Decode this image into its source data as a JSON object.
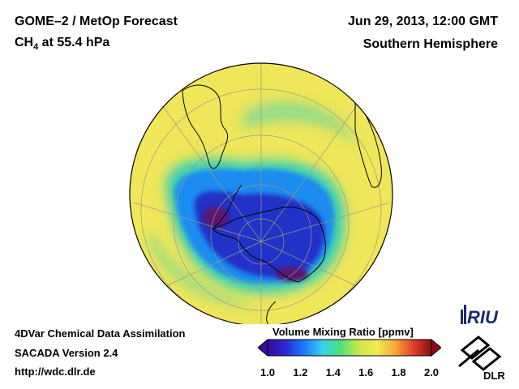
{
  "header": {
    "title_line1": "GOME–2 / MetOp Forecast",
    "species": "CH",
    "species_sub": "4",
    "level": " at 55.4 hPa",
    "datetime": "Jun 29, 2013, 12:00 GMT",
    "hemisphere": "Southern Hemisphere"
  },
  "footer": {
    "line1": "4DVar Chemical Data Assimilation",
    "line2": "SACADA Version 2.4",
    "line3": "http://wdc.dlr.de"
  },
  "colorbar": {
    "title": "Volume Mixing Ratio [ppmv]",
    "min": 1.0,
    "max": 2.0,
    "ticks": [
      "1.0",
      "1.2",
      "1.4",
      "1.6",
      "1.8",
      "2.0"
    ],
    "colors": [
      "#3a0a9a",
      "#2a2ad8",
      "#1e78ff",
      "#35d2f0",
      "#4ee07a",
      "#c8e84a",
      "#f2ea50",
      "#f4a83a",
      "#e0402a",
      "#8a0e1a"
    ]
  },
  "map_colors": {
    "background_field": "#efe65a",
    "low_core": "#5a1270",
    "low_ring": "#2230c8",
    "mid_ring": "#1e8cf0",
    "transition": "#40d0b0",
    "graticule": "#9a9a80",
    "coastline": "#000000"
  },
  "logos": {
    "riu_text": "RIU",
    "dlr_text": "DLR"
  }
}
